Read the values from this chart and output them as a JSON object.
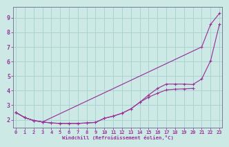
{
  "background_color": "#cce9e6",
  "grid_color": "#aad4d0",
  "line_color": "#993399",
  "marker_color": "#993399",
  "xlabel": "Windchill (Refroidissement éolien,°C)",
  "xlabel_color": "#993399",
  "ylabel_color": "#993399",
  "tick_color": "#993399",
  "ylim": [
    1.45,
    9.75
  ],
  "xlim": [
    -0.3,
    23.3
  ],
  "yticks": [
    2,
    3,
    4,
    5,
    6,
    7,
    8,
    9
  ],
  "xticks": [
    0,
    1,
    2,
    3,
    4,
    5,
    6,
    7,
    8,
    9,
    10,
    11,
    12,
    13,
    14,
    15,
    16,
    17,
    18,
    19,
    20,
    21,
    22,
    23
  ],
  "line1_x": [
    0,
    1,
    2,
    3,
    21,
    22,
    23
  ],
  "line1_y": [
    2.5,
    2.15,
    1.95,
    1.85,
    7.0,
    8.55,
    9.3
  ],
  "line2_x": [
    0,
    1,
    2,
    3,
    4,
    5,
    6,
    7,
    8,
    9,
    10,
    11,
    12,
    13,
    14,
    15,
    16,
    17,
    18,
    19,
    20,
    21,
    22,
    23
  ],
  "line2_y": [
    2.5,
    2.15,
    1.95,
    1.85,
    1.78,
    1.75,
    1.75,
    1.75,
    1.78,
    1.82,
    2.1,
    2.25,
    2.45,
    2.75,
    3.2,
    3.7,
    4.15,
    4.45,
    4.45,
    4.45,
    4.42,
    4.8,
    6.05,
    8.55
  ],
  "line3_x": [
    0,
    1,
    2,
    3,
    4,
    5,
    6,
    7,
    8,
    9,
    10,
    11,
    12,
    13,
    14,
    15,
    16,
    17,
    18,
    19,
    20
  ],
  "line3_y": [
    2.5,
    2.15,
    1.95,
    1.85,
    1.78,
    1.75,
    1.75,
    1.75,
    1.78,
    1.82,
    2.1,
    2.25,
    2.45,
    2.75,
    3.2,
    3.55,
    3.82,
    4.05,
    4.1,
    4.12,
    4.15
  ]
}
